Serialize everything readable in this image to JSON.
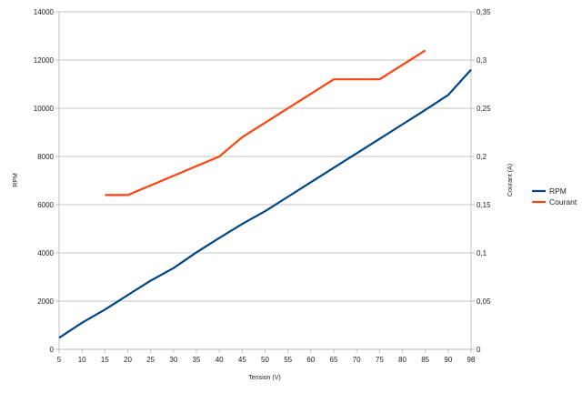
{
  "chart_data": {
    "type": "line",
    "title": "",
    "xlabel": "Tension (V)",
    "ylabel": "RPM",
    "y2label": "Courant (A)",
    "x_ticks": [
      "5",
      "10",
      "15",
      "20",
      "25",
      "30",
      "35",
      "40",
      "45",
      "50",
      "55",
      "60",
      "65",
      "70",
      "75",
      "80",
      "85",
      "90",
      "98"
    ],
    "y_ticks": [
      "0",
      "2000",
      "4000",
      "6000",
      "8000",
      "10000",
      "12000",
      "14000"
    ],
    "y2_ticks": [
      "0",
      "0,05",
      "0,1",
      "0,15",
      "0,2",
      "0,25",
      "0,3",
      "0,35"
    ],
    "ylim": [
      0,
      14000
    ],
    "y2lim": [
      0,
      0.35
    ],
    "grid": true,
    "legend_position": "right",
    "series": [
      {
        "name": "RPM",
        "axis": "left",
        "color": "#004586",
        "x": [
          5,
          10,
          15,
          20,
          25,
          30,
          35,
          40,
          45,
          50,
          55,
          60,
          65,
          70,
          75,
          80,
          85,
          90,
          98
        ],
        "y": [
          480,
          1100,
          1650,
          2250,
          2850,
          3370,
          4020,
          4620,
          5200,
          5730,
          6330,
          6930,
          7530,
          8130,
          8730,
          9330,
          9930,
          10550,
          11600
        ]
      },
      {
        "name": "Courant",
        "axis": "right",
        "color": "#ff420e",
        "x": [
          15,
          20,
          40,
          45,
          65,
          75,
          85
        ],
        "y": [
          0.16,
          0.16,
          0.2,
          0.22,
          0.28,
          0.28,
          0.31
        ]
      }
    ]
  }
}
